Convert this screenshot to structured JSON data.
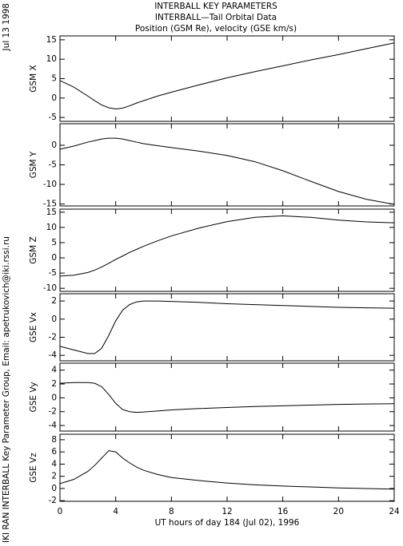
{
  "title": [
    "INTERBALL KEY PARAMETERS",
    "INTERBALL—Tail Orbital Data",
    "Position (GSM Re), velocity (GSE km/s)"
  ],
  "date_label": "Jul 13 1998",
  "credit": "IKI RAN INTERBALL Key Parameter Group, Email: apetrukovich@iki.rssi.ru",
  "xlabel": "UT hours of day 184 (Jul 02), 1996",
  "chart_data": [
    {
      "type": "line",
      "ylabel": "GSM X",
      "color": "#000000",
      "x": [
        0,
        1,
        2,
        2.5,
        3,
        3.5,
        4,
        4.5,
        5,
        5.5,
        6,
        7,
        8,
        10,
        12,
        14,
        16,
        18,
        20,
        22,
        24
      ],
      "values": [
        4.5,
        2.8,
        0.5,
        -0.7,
        -1.8,
        -2.5,
        -2.8,
        -2.6,
        -2.0,
        -1.3,
        -0.7,
        0.5,
        1.5,
        3.4,
        5.2,
        6.8,
        8.3,
        9.8,
        11.2,
        12.7,
        14.2
      ],
      "xlim": [
        0,
        24
      ],
      "xticks": [
        0,
        4,
        8,
        12,
        16,
        20,
        24
      ],
      "ylim": [
        -6,
        16
      ],
      "yticks": [
        -5,
        0,
        5,
        10,
        15
      ]
    },
    {
      "type": "line",
      "ylabel": "GSM Y",
      "color": "#000000",
      "x": [
        0,
        1,
        2,
        2.5,
        3,
        3.5,
        4,
        4.5,
        5,
        5.5,
        6,
        7,
        8,
        10,
        12,
        14,
        16,
        18,
        20,
        22,
        24
      ],
      "values": [
        -1,
        -0.2,
        0.8,
        1.2,
        1.6,
        1.8,
        1.8,
        1.6,
        1.2,
        0.8,
        0.4,
        -0.1,
        -0.6,
        -1.5,
        -2.6,
        -4.2,
        -6.5,
        -9.2,
        -11.8,
        -13.8,
        -15.1
      ],
      "xlim": [
        0,
        24
      ],
      "xticks": [
        0,
        4,
        8,
        12,
        16,
        20,
        24
      ],
      "ylim": [
        -15.5,
        5.5
      ],
      "yticks": [
        -15,
        -10,
        -5,
        0
      ]
    },
    {
      "type": "line",
      "ylabel": "GSM Z",
      "color": "#000000",
      "x": [
        0,
        1,
        2,
        2.5,
        3,
        3.5,
        4,
        4.5,
        5,
        5.5,
        6,
        7,
        8,
        10,
        12,
        14,
        16,
        18,
        20,
        22,
        24
      ],
      "values": [
        -6,
        -5.7,
        -4.8,
        -4,
        -3,
        -1.8,
        -0.5,
        0.6,
        1.8,
        2.8,
        3.8,
        5.6,
        7.2,
        9.8,
        11.9,
        13.3,
        13.8,
        13.3,
        12.4,
        11.8,
        11.5
      ],
      "xlim": [
        0,
        24
      ],
      "xticks": [
        0,
        4,
        8,
        12,
        16,
        20,
        24
      ],
      "ylim": [
        -11,
        16
      ],
      "yticks": [
        -10,
        -5,
        0,
        5,
        10,
        15
      ]
    },
    {
      "type": "line",
      "ylabel": "GSE Vx",
      "color": "#000000",
      "x": [
        0,
        1,
        2,
        2.5,
        3,
        3.5,
        4,
        4.5,
        5,
        5.5,
        6,
        7,
        8,
        10,
        12,
        14,
        16,
        18,
        20,
        22,
        24
      ],
      "values": [
        -3.0,
        -3.4,
        -3.8,
        -3.8,
        -3.2,
        -1.8,
        -0.2,
        1.0,
        1.6,
        1.9,
        2.0,
        2.0,
        1.95,
        1.85,
        1.7,
        1.6,
        1.5,
        1.4,
        1.3,
        1.25,
        1.2
      ],
      "xlim": [
        0,
        24
      ],
      "xticks": [
        0,
        4,
        8,
        12,
        16,
        20,
        24
      ],
      "ylim": [
        -4.6,
        2.8
      ],
      "yticks": [
        -4,
        -2,
        0,
        2
      ]
    },
    {
      "type": "line",
      "ylabel": "GSE Vy",
      "color": "#000000",
      "x": [
        0,
        1,
        2,
        2.5,
        3,
        3.5,
        4,
        4.5,
        5,
        5.5,
        6,
        7,
        8,
        10,
        12,
        14,
        16,
        18,
        20,
        22,
        24
      ],
      "values": [
        2.1,
        2.2,
        2.2,
        2.1,
        1.6,
        0.5,
        -0.8,
        -1.7,
        -2.0,
        -2.1,
        -2.05,
        -1.9,
        -1.75,
        -1.55,
        -1.4,
        -1.25,
        -1.15,
        -1.05,
        -0.95,
        -0.9,
        -0.85
      ],
      "xlim": [
        0,
        24
      ],
      "xticks": [
        0,
        4,
        8,
        12,
        16,
        20,
        24
      ],
      "ylim": [
        -4.8,
        5
      ],
      "yticks": [
        -4,
        -2,
        0,
        2,
        4
      ]
    },
    {
      "type": "line",
      "ylabel": "GSE Vz",
      "color": "#000000",
      "x": [
        0,
        1,
        2,
        2.5,
        3,
        3.5,
        4,
        4.5,
        5,
        5.5,
        6,
        7,
        8,
        10,
        12,
        14,
        16,
        18,
        20,
        22,
        24
      ],
      "values": [
        0.8,
        1.5,
        2.8,
        3.8,
        5.0,
        6.2,
        6.0,
        5.0,
        4.2,
        3.5,
        3.0,
        2.3,
        1.8,
        1.3,
        0.9,
        0.6,
        0.4,
        0.25,
        0.1,
        0.0,
        -0.1
      ],
      "xlim": [
        0,
        24
      ],
      "xticks": [
        0,
        4,
        8,
        12,
        16,
        20,
        24
      ],
      "ylim": [
        -2.1,
        8.9
      ],
      "yticks": [
        -2,
        0,
        2,
        4,
        6,
        8
      ]
    }
  ]
}
